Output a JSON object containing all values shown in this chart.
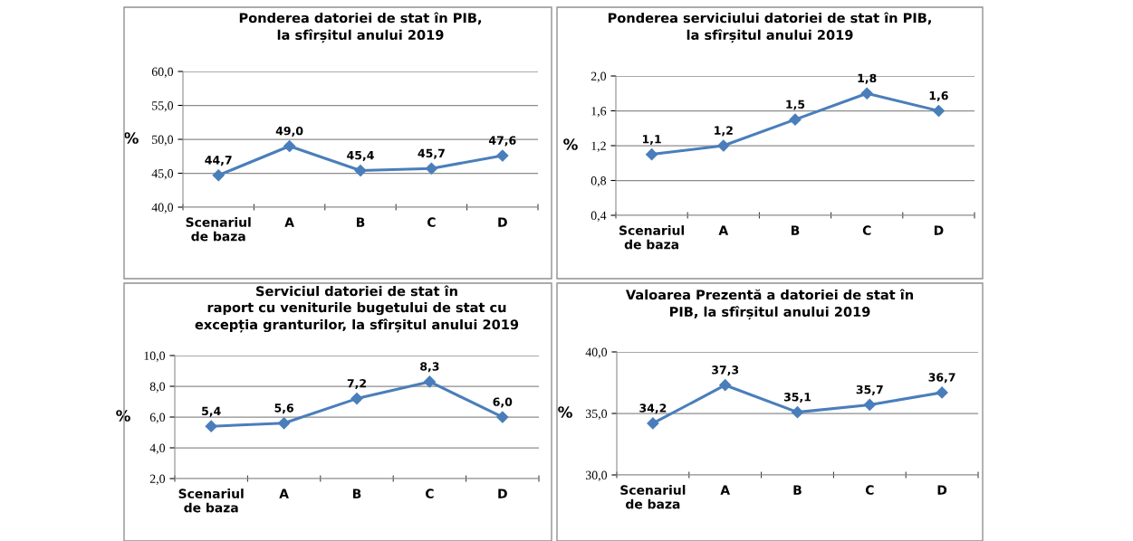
{
  "chart_data": [
    {
      "type": "line",
      "title": "Ponderea datoriei de stat în PIB,\nla sfîrșitul anului 2019",
      "ylabel": "%",
      "categories": [
        "Scenariul\nde baza",
        "A",
        "B",
        "C",
        "D"
      ],
      "series": [
        {
          "color": "#4a7ebb",
          "values": [
            44.7,
            49.0,
            45.4,
            45.7,
            47.6
          ],
          "value_labels": [
            "44,7",
            "49,0",
            "45,4",
            "45,7",
            "47,6"
          ]
        }
      ],
      "ylim": [
        40,
        60
      ],
      "yticks": [
        {
          "value": 40,
          "label": "40,0"
        },
        {
          "value": 45,
          "label": "45,0"
        },
        {
          "value": 50,
          "label": "50,0"
        },
        {
          "value": 55,
          "label": "55,0"
        },
        {
          "value": 60,
          "label": "60,0"
        }
      ],
      "grid": "y",
      "marker": "diamond",
      "line_style": "solid",
      "legend": false
    },
    {
      "type": "line",
      "title": "Ponderea serviciului datoriei de stat în PIB,\nla sfîrșitul anului 2019",
      "ylabel": "%",
      "categories": [
        "Scenariul\nde baza",
        "A",
        "B",
        "C",
        "D"
      ],
      "series": [
        {
          "color": "#4a7ebb",
          "values": [
            1.1,
            1.2,
            1.5,
            1.8,
            1.6
          ],
          "value_labels": [
            "1,1",
            "1,2",
            "1,5",
            "1,8",
            "1,6"
          ]
        }
      ],
      "ylim": [
        0.4,
        2.0
      ],
      "yticks": [
        {
          "value": 0.4,
          "label": "0,4"
        },
        {
          "value": 0.8,
          "label": "0,8"
        },
        {
          "value": 1.2,
          "label": "1,2"
        },
        {
          "value": 1.6,
          "label": "1,6"
        },
        {
          "value": 2.0,
          "label": "2,0"
        }
      ],
      "grid": "y",
      "marker": "diamond",
      "line_style": "solid",
      "legend": false
    },
    {
      "type": "line",
      "title": "Serviciul datoriei de stat în\nraport cu veniturile bugetului de stat cu\nexcepția granturilor, la sfîrșitul anului 2019",
      "ylabel": "%",
      "categories": [
        "Scenariul\nde baza",
        "A",
        "B",
        "C",
        "D"
      ],
      "series": [
        {
          "color": "#4a7ebb",
          "values": [
            5.4,
            5.6,
            7.2,
            8.3,
            6.0
          ],
          "value_labels": [
            "5,4",
            "5,6",
            "7,2",
            "8,3",
            "6,0"
          ]
        }
      ],
      "ylim": [
        2,
        10
      ],
      "yticks": [
        {
          "value": 2,
          "label": "2,0"
        },
        {
          "value": 4,
          "label": "4,0"
        },
        {
          "value": 6,
          "label": "6,0"
        },
        {
          "value": 8,
          "label": "8,0"
        },
        {
          "value": 10,
          "label": "10,0"
        }
      ],
      "grid": "y",
      "marker": "diamond",
      "line_style": "solid",
      "legend": false
    },
    {
      "type": "line",
      "title": "Valoarea Prezentă a datoriei de stat în\nPIB, la sfîrșitul anului 2019",
      "ylabel": "%",
      "categories": [
        "Scenariul\nde baza",
        "A",
        "B",
        "C",
        "D"
      ],
      "series": [
        {
          "color": "#4a7ebb",
          "values": [
            34.2,
            37.3,
            35.1,
            35.7,
            36.7
          ],
          "value_labels": [
            "34,2",
            "37,3",
            "35,1",
            "35,7",
            "36,7"
          ]
        }
      ],
      "ylim": [
        30,
        40
      ],
      "yticks": [
        {
          "value": 30,
          "label": "30,0"
        },
        {
          "value": 35,
          "label": "35,0"
        },
        {
          "value": 40,
          "label": "40,0"
        }
      ],
      "grid": "y",
      "marker": "diamond",
      "line_style": "solid",
      "legend": false
    }
  ]
}
